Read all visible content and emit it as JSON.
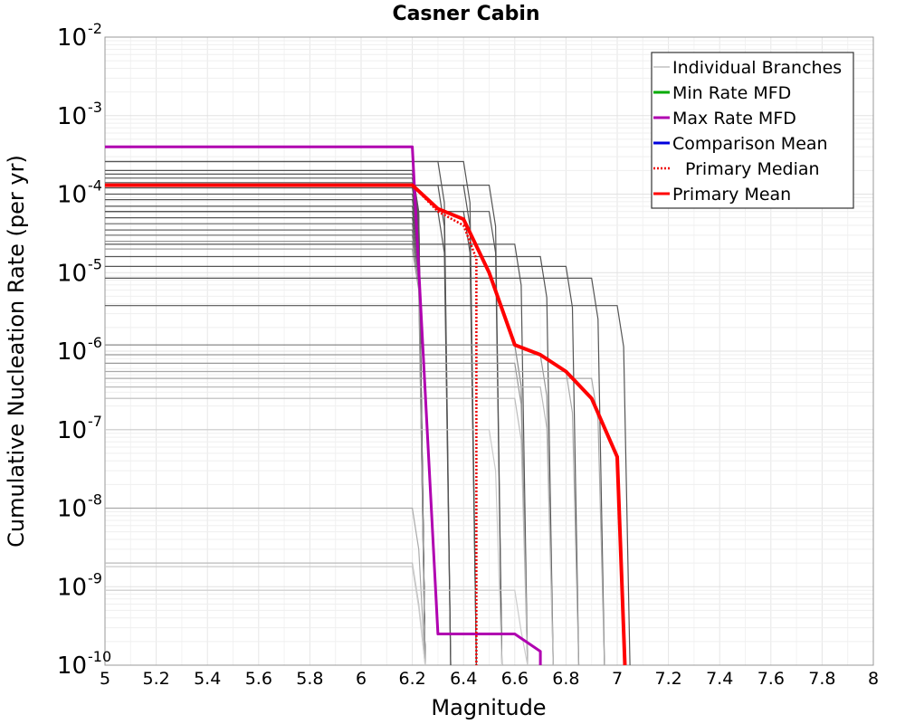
{
  "chart_data": {
    "type": "line",
    "title": "Casner Cabin",
    "xlabel": "Magnitude",
    "ylabel": "Cumulative Nucleation Rate (per yr)",
    "xlim": [
      5,
      8
    ],
    "ylim": [
      1e-10,
      0.01
    ],
    "yscale": "log",
    "grid": true,
    "legend_position": "top-right",
    "x_ticks": [
      "5",
      "5.2",
      "5.4",
      "5.6",
      "5.8",
      "6",
      "6.2",
      "6.4",
      "6.6",
      "6.8",
      "7",
      "7.2",
      "7.4",
      "7.6",
      "7.8",
      "8"
    ],
    "y_ticks": [
      {
        "base": "10",
        "exp": "-10"
      },
      {
        "base": "10",
        "exp": "-9"
      },
      {
        "base": "10",
        "exp": "-8"
      },
      {
        "base": "10",
        "exp": "-7"
      },
      {
        "base": "10",
        "exp": "-6"
      },
      {
        "base": "10",
        "exp": "-5"
      },
      {
        "base": "10",
        "exp": "-4"
      },
      {
        "base": "10",
        "exp": "-3"
      },
      {
        "base": "10",
        "exp": "-2"
      }
    ],
    "series": [
      {
        "name": "Individual Branches",
        "color": "#a0a0a0",
        "style": "solid",
        "branches": [
          {
            "rate": 0.0002,
            "mmax": 6.2,
            "color": "#555555"
          },
          {
            "rate": 0.00018,
            "mmax": 6.2,
            "color": "#555555"
          },
          {
            "rate": 0.00016,
            "mmax": 6.2,
            "color": "#555555"
          },
          {
            "rate": 0.00014,
            "mmax": 6.2,
            "color": "#555555"
          },
          {
            "rate": 0.00012,
            "mmax": 6.2,
            "color": "#555555"
          },
          {
            "rate": 0.0001,
            "mmax": 6.2,
            "color": "#555555"
          },
          {
            "rate": 8.5e-05,
            "mmax": 6.2,
            "color": "#555555"
          },
          {
            "rate": 7e-05,
            "mmax": 6.2,
            "color": "#555555"
          },
          {
            "rate": 6e-05,
            "mmax": 6.2,
            "color": "#555555"
          },
          {
            "rate": 5e-05,
            "mmax": 6.2,
            "color": "#555555"
          },
          {
            "rate": 4.2e-05,
            "mmax": 6.2,
            "color": "#666666"
          },
          {
            "rate": 3.5e-05,
            "mmax": 6.2,
            "color": "#666666"
          },
          {
            "rate": 3e-05,
            "mmax": 6.2,
            "color": "#777777"
          },
          {
            "rate": 2.5e-05,
            "mmax": 6.2,
            "color": "#888888"
          },
          {
            "rate": 2e-05,
            "mmax": 6.2,
            "color": "#999999"
          },
          {
            "rate": 0.00026,
            "mmax": 6.3,
            "color": "#555555"
          },
          {
            "rate": 0.00013,
            "mmax": 6.3,
            "color": "#555555"
          },
          {
            "rate": 6e-05,
            "mmax": 6.3,
            "color": "#555555"
          },
          {
            "rate": 0.00026,
            "mmax": 6.4,
            "color": "#555555"
          },
          {
            "rate": 0.00013,
            "mmax": 6.4,
            "color": "#555555"
          },
          {
            "rate": 6e-05,
            "mmax": 6.4,
            "color": "#555555"
          },
          {
            "rate": 0.00013,
            "mmax": 6.5,
            "color": "#555555"
          },
          {
            "rate": 6e-05,
            "mmax": 6.5,
            "color": "#555555"
          },
          {
            "rate": 2.3e-05,
            "mmax": 6.6,
            "color": "#555555"
          },
          {
            "rate": 1.6e-05,
            "mmax": 6.7,
            "color": "#555555"
          },
          {
            "rate": 1.2e-05,
            "mmax": 6.8,
            "color": "#555555"
          },
          {
            "rate": 8.5e-06,
            "mmax": 6.9,
            "color": "#555555"
          },
          {
            "rate": 3.8e-06,
            "mmax": 7.0,
            "color": "#555555"
          },
          {
            "rate": 1.2e-06,
            "mmax": 6.6,
            "color": "#888888"
          },
          {
            "rate": 9e-07,
            "mmax": 6.7,
            "color": "#999999"
          },
          {
            "rate": 7e-07,
            "mmax": 6.6,
            "color": "#999999"
          },
          {
            "rate": 5.5e-07,
            "mmax": 6.8,
            "color": "#aaaaaa"
          },
          {
            "rate": 4.5e-07,
            "mmax": 6.9,
            "color": "#aaaaaa"
          },
          {
            "rate": 3.5e-07,
            "mmax": 6.7,
            "color": "#bbbbbb"
          },
          {
            "rate": 2.5e-07,
            "mmax": 6.6,
            "color": "#bbbbbb"
          },
          {
            "rate": 1e-07,
            "mmax": 6.5,
            "color": "#cccccc"
          },
          {
            "rate": 1e-08,
            "mmax": 6.2,
            "color": "#aaaaaa"
          },
          {
            "rate": 2e-09,
            "mmax": 6.2,
            "color": "#bbbbbb"
          },
          {
            "rate": 1.8e-09,
            "mmax": 6.2,
            "color": "#cccccc"
          },
          {
            "rate": 9e-10,
            "mmax": 6.6,
            "color": "#cccccc"
          }
        ]
      },
      {
        "name": "Min Rate MFD",
        "color": "#00aa00",
        "style": "solid",
        "x": [],
        "y": []
      },
      {
        "name": "Max Rate MFD",
        "color": "#b000b0",
        "style": "solid",
        "x": [
          5.0,
          6.2,
          6.3,
          6.6,
          6.7,
          6.7
        ],
        "y": [
          0.0004,
          0.0004,
          2.5e-10,
          2.5e-10,
          1.5e-10,
          1e-10
        ]
      },
      {
        "name": "Comparison Mean",
        "color": "#0000dd",
        "style": "solid",
        "x": [],
        "y": []
      },
      {
        "name": "Primary Median",
        "color": "#ee0000",
        "style": "dotted",
        "x": [
          5.0,
          6.2,
          6.3,
          6.4,
          6.45,
          6.45
        ],
        "y": [
          0.00013,
          0.00013,
          6e-05,
          4e-05,
          1.5e-05,
          1e-10
        ]
      },
      {
        "name": "Primary Mean",
        "color": "#ff0000",
        "style": "solid",
        "x": [
          5.0,
          6.2,
          6.3,
          6.4,
          6.5,
          6.6,
          6.7,
          6.8,
          6.9,
          7.0,
          7.03
        ],
        "y": [
          0.00013,
          0.00013,
          6.5e-05,
          4.8e-05,
          1e-05,
          1.2e-06,
          9e-07,
          5.5e-07,
          2.5e-07,
          4.5e-08,
          1e-10
        ]
      }
    ]
  }
}
